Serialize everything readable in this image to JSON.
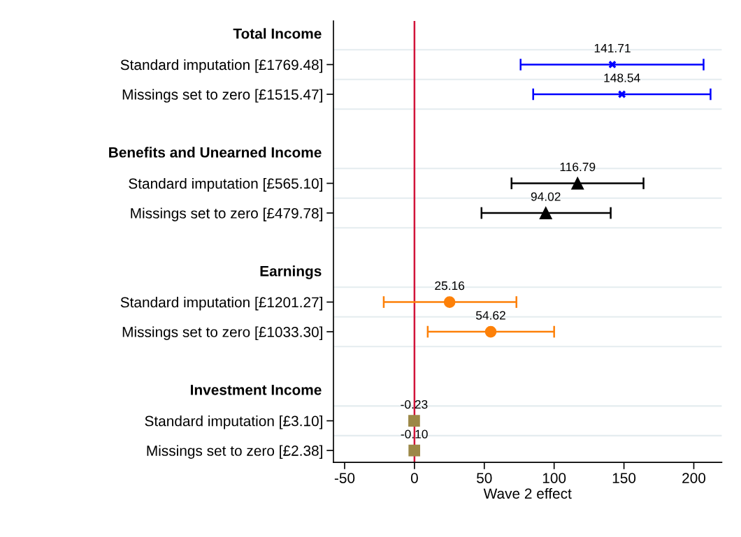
{
  "chart_data": {
    "type": "scatter",
    "categories": [
      "Total Income",
      "Standard imputation [£1769.48]",
      "Missings set to zero [£1515.47]",
      null,
      "Benefits and Unearned Income",
      "Standard imputation [£565.10]",
      "Missings set to zero [£479.78]",
      null,
      "Earnings",
      "Standard imputation [£1201.27]",
      "Missings set to zero [£1033.30]",
      null,
      "Investment Income",
      "Standard imputation [£3.10]",
      "Missings set to zero [£2.38]"
    ],
    "series": [
      {
        "color": "#0000ff",
        "marker": "cross",
        "values": [
          null,
          141.71,
          148.54,
          null,
          null,
          null,
          null,
          null,
          null,
          null,
          null,
          null,
          null,
          null,
          null
        ],
        "errors": [
          null,
          [
            76,
            207
          ],
          [
            85,
            212
          ],
          null,
          null,
          null,
          null,
          null,
          null,
          null,
          null,
          null,
          null,
          null,
          null
        ],
        "value_labels": [
          null,
          "141.71",
          "148.54",
          null,
          null,
          null,
          null,
          null,
          null,
          null,
          null,
          null,
          null,
          null,
          null
        ]
      },
      {
        "color": "#000000",
        "marker": "triangle",
        "values": [
          null,
          null,
          null,
          null,
          null,
          116.79,
          94.02,
          null,
          null,
          null,
          null,
          null,
          null,
          null,
          null
        ],
        "errors": [
          null,
          null,
          null,
          null,
          null,
          [
            69.5,
            164
          ],
          [
            48,
            140.5
          ],
          null,
          null,
          null,
          null,
          null,
          null,
          null,
          null
        ],
        "value_labels": [
          null,
          null,
          null,
          null,
          null,
          "116.79",
          "94.02",
          null,
          null,
          null,
          null,
          null,
          null,
          null,
          null
        ]
      },
      {
        "color": "#fd8008",
        "marker": "circle",
        "values": [
          null,
          null,
          null,
          null,
          null,
          null,
          null,
          null,
          null,
          25.16,
          54.62,
          null,
          null,
          null,
          null
        ],
        "errors": [
          null,
          null,
          null,
          null,
          null,
          null,
          null,
          null,
          null,
          [
            -22,
            73
          ],
          [
            9.5,
            100
          ],
          null,
          null,
          null,
          null
        ],
        "value_labels": [
          null,
          null,
          null,
          null,
          null,
          null,
          null,
          null,
          null,
          "25.16",
          "54.62",
          null,
          null,
          null,
          null
        ]
      },
      {
        "color": "#9c8847",
        "marker": "square",
        "values": [
          null,
          null,
          null,
          null,
          null,
          null,
          null,
          null,
          null,
          null,
          null,
          null,
          null,
          -0.23,
          -0.1
        ],
        "value_labels": [
          null,
          null,
          null,
          null,
          null,
          null,
          null,
          null,
          null,
          null,
          null,
          null,
          null,
          "-0.23",
          "-0.10"
        ]
      }
    ],
    "xlabel": "Wave 2 effect",
    "xlim": [
      -58,
      220
    ],
    "xticks": [
      -50,
      0,
      50,
      100,
      150,
      200
    ],
    "ref_lines": [
      {
        "axis": "x",
        "value": 0,
        "color": "#d2143a"
      }
    ],
    "grid": "y",
    "orientation": "horizontal"
  }
}
